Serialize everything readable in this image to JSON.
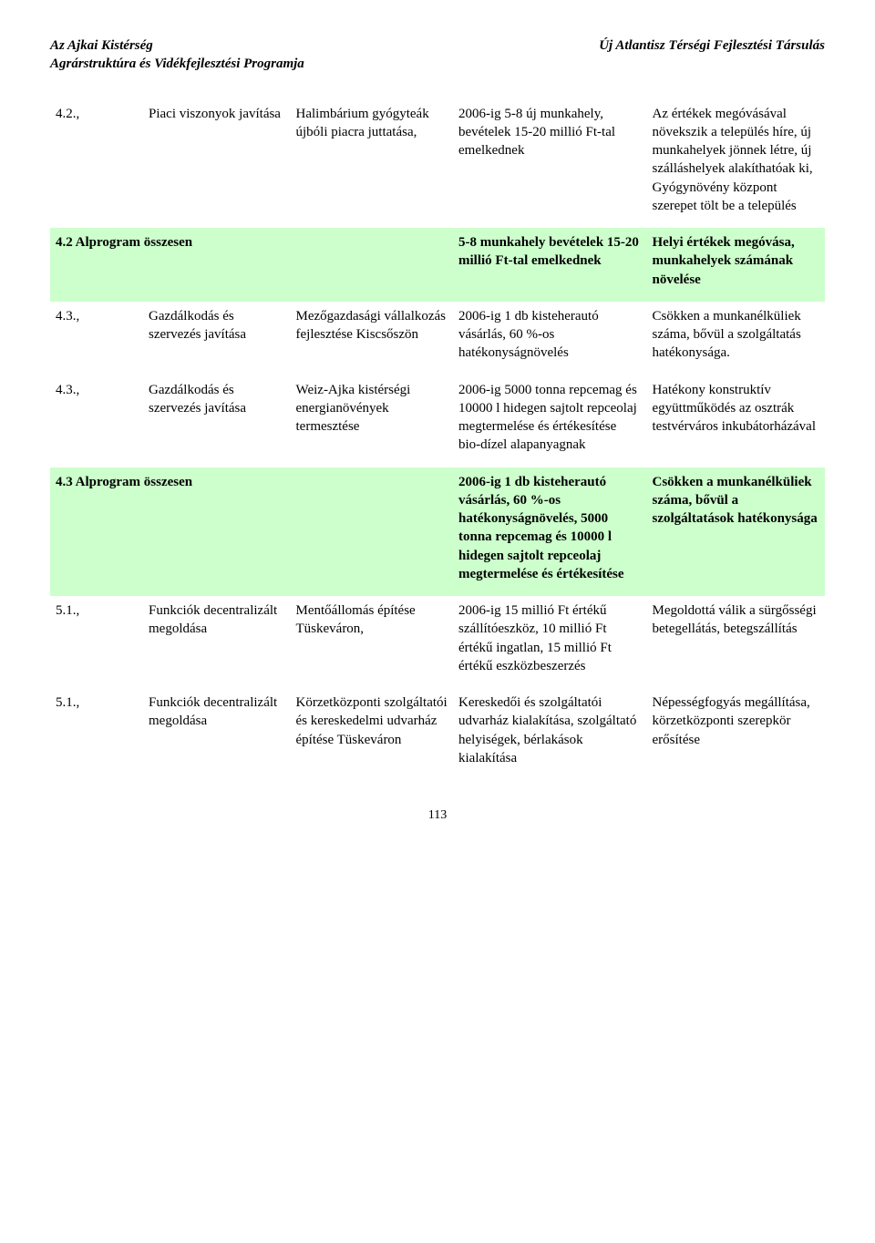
{
  "header": {
    "left": "Az Ajkai Kistérség\nAgrárstruktúra és Vidékfejlesztési Programja",
    "right": "Új Atlantisz Térségi Fejlesztési Társulás"
  },
  "colors": {
    "summary_bg": "#ccffcc",
    "text": "#000000",
    "page_bg": "#ffffff"
  },
  "rows": [
    {
      "type": "normal",
      "c1": "4.2.,",
      "c2": "Piaci viszonyok javítása",
      "c3": "Halimbárium gyógyteák újbóli piacra juttatása,",
      "c4": "2006-ig 5-8 új munkahely, bevételek 15-20 millió Ft-tal emelkednek",
      "c5": "Az értékek megóvásával növekszik a település híre, új munkahelyek jönnek létre, új szálláshelyek alakíthatóak ki, Gyógynövény központ szerepet tölt be a település"
    },
    {
      "type": "summary",
      "c1": "4.2 Alprogram összesen",
      "c2": "",
      "c3": "",
      "c4": "5-8 munkahely bevételek 15-20 millió Ft-tal emelkednek",
      "c5": "Helyi értékek megóvása, munkahelyek számának növelése"
    },
    {
      "type": "normal",
      "c1": "4.3.,",
      "c2": "Gazdálkodás és szervezés javítása",
      "c3": "Mezőgazdasági vállalkozás fejlesztése Kiscsőszön",
      "c4": "2006-ig 1 db kisteherautó vásárlás, 60 %-os hatékonyságnövelés",
      "c5": "Csökken a munkanélküliek száma, bővül a szolgáltatás hatékonysága."
    },
    {
      "type": "normal",
      "c1": "4.3.,",
      "c2": "Gazdálkodás és szervezés javítása",
      "c3": "Weiz-Ajka kistérségi energianövények termesztése",
      "c4": "2006-ig 5000 tonna repcemag és 10000 l hidegen sajtolt repceolaj megtermelése és értékesítése bio-dízel alapanyagnak",
      "c5": "Hatékony konstruktív együttműködés az osztrák testvérváros inkubátorházával"
    },
    {
      "type": "summary",
      "c1": "4.3 Alprogram összesen",
      "c2": "",
      "c3": "",
      "c4": "2006-ig 1 db kisteherautó vásárlás, 60 %-os hatékonyságnövelés, 5000 tonna repcemag és 10000 l hidegen sajtolt repceolaj megtermelése és értékesítése",
      "c5": "Csökken a munkanélküliek száma, bővül a szolgáltatások hatékonysága"
    },
    {
      "type": "normal",
      "c1": "5.1.,",
      "c2": "Funkciók decentralizált megoldása",
      "c3": "Mentőállomás építése Tüskeváron,",
      "c4": "2006-ig 15 millió Ft értékű szállítóeszköz, 10 millió Ft értékű ingatlan, 15 millió Ft értékű eszközbeszerzés",
      "c5": "Megoldottá válik a sürgősségi betegellátás, betegszállítás"
    },
    {
      "type": "normal",
      "c1": "5.1.,",
      "c2": "Funkciók decentralizált megoldása",
      "c3": "Körzetközponti szolgáltatói és kereskedelmi udvarház építése Tüskeváron",
      "c4": "Kereskedői és szolgáltatói udvarház kialakítása, szolgáltató helyiségek, bérlakások kialakítása",
      "c5": "Népességfogyás megállítása, körzetközponti szerepkör erősítése"
    }
  ],
  "page_number": "113"
}
